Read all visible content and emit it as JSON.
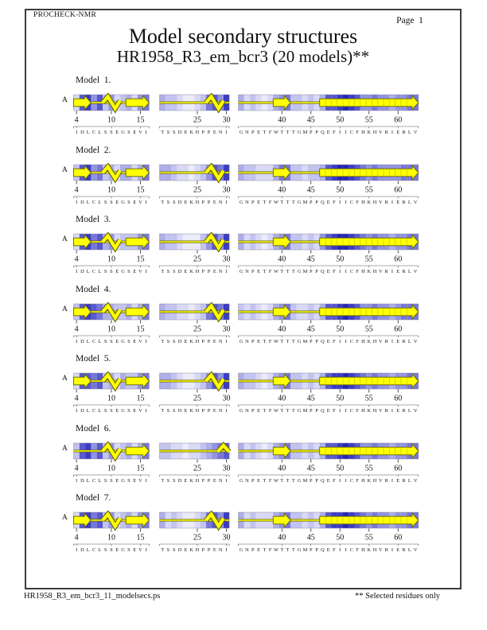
{
  "header": {
    "app_name": "PROCHECK-NMR",
    "page_label": "Page  1",
    "title": "Model secondary structures",
    "subtitle": "HR1958_R3_em_bcr3 (20 models)**"
  },
  "footer": {
    "left": "HR1958_R3_em_bcr3_11_modelsecs.ps",
    "right": "** Selected residues only"
  },
  "chain_label": "A",
  "colors": {
    "structure_fill": "#ffff00",
    "structure_outline": "#636300",
    "strand_divider": "#c8c800",
    "shade_scale": [
      "#ffffff",
      "#ebebfa",
      "#d9d9f6",
      "#c3c3ef",
      "#adade9",
      "#9393e1",
      "#7777d8",
      "#5858cf",
      "#3b3bc5",
      "#2424ba"
    ]
  },
  "segments": [
    {
      "start": 4,
      "end": 16,
      "ticks": [
        4,
        10,
        15
      ],
      "sequence": "IDLCLSSEGSEVI"
    },
    {
      "start": 19,
      "end": 30,
      "ticks": [
        25,
        30
      ],
      "sequence": "TSSDEKHPPENI"
    },
    {
      "start": 33,
      "end": 63,
      "ticks": [
        40,
        45,
        50,
        55,
        60
      ],
      "sequence": "GNPETFWTTTGMPPQEFIICFHKHVRIERLV"
    }
  ],
  "models": [
    {
      "label": "Model  1.",
      "segments": [
        {
          "shades": [
            2,
            7,
            8,
            5,
            7,
            3,
            5,
            2,
            3,
            4,
            2,
            5,
            6
          ],
          "structures": [
            {
              "type": "strand",
              "from": 4,
              "to": 6
            },
            {
              "type": "helix",
              "from": 9,
              "to": 11
            },
            {
              "type": "strand",
              "from": 13,
              "to": 16
            }
          ]
        },
        {
          "shades": [
            4,
            3,
            3,
            2,
            1,
            1,
            2,
            3,
            6,
            7,
            5,
            8
          ],
          "structures": [
            {
              "type": "helix",
              "from": 27,
              "to": 29
            }
          ]
        },
        {
          "shades": [
            4,
            2,
            3,
            2,
            1,
            2,
            4,
            5,
            6,
            3,
            3,
            2,
            3,
            2,
            4,
            7,
            7,
            8,
            9,
            8,
            7,
            5,
            5,
            6,
            5,
            5,
            4,
            5,
            5,
            6,
            6
          ],
          "structures": [
            {
              "type": "strand",
              "from": 39,
              "to": 41
            },
            {
              "type": "strand",
              "from": 47,
              "to": 63
            }
          ]
        }
      ]
    },
    {
      "label": "Model  2.",
      "segments": [
        {
          "shades": [
            3,
            7,
            8,
            5,
            6,
            3,
            4,
            2,
            4,
            4,
            2,
            4,
            6
          ],
          "structures": [
            {
              "type": "strand",
              "from": 4,
              "to": 6
            },
            {
              "type": "helix",
              "from": 9,
              "to": 11
            },
            {
              "type": "strand",
              "from": 13,
              "to": 16
            }
          ]
        },
        {
          "shades": [
            4,
            4,
            3,
            2,
            2,
            1,
            2,
            3,
            5,
            7,
            6,
            8
          ],
          "structures": [
            {
              "type": "helix",
              "from": 27,
              "to": 29
            }
          ]
        },
        {
          "shades": [
            4,
            3,
            3,
            2,
            2,
            2,
            4,
            6,
            6,
            3,
            3,
            2,
            3,
            3,
            4,
            7,
            8,
            9,
            9,
            8,
            7,
            6,
            5,
            6,
            5,
            5,
            5,
            5,
            6,
            6,
            6
          ],
          "structures": [
            {
              "type": "strand",
              "from": 39,
              "to": 41
            },
            {
              "type": "strand",
              "from": 47,
              "to": 63
            }
          ]
        }
      ]
    },
    {
      "label": "Model  3.",
      "segments": [
        {
          "shades": [
            2,
            7,
            8,
            6,
            7,
            4,
            5,
            2,
            3,
            3,
            3,
            5,
            6
          ],
          "structures": [
            {
              "type": "strand",
              "from": 4,
              "to": 6
            },
            {
              "type": "helix",
              "from": 9,
              "to": 11
            },
            {
              "type": "strand",
              "from": 13,
              "to": 16
            }
          ]
        },
        {
          "shades": [
            4,
            3,
            3,
            2,
            1,
            1,
            1,
            3,
            5,
            7,
            5,
            8
          ],
          "structures": [
            {
              "type": "helix",
              "from": 27,
              "to": 29
            }
          ]
        },
        {
          "shades": [
            4,
            2,
            3,
            2,
            1,
            2,
            4,
            5,
            6,
            3,
            3,
            2,
            3,
            2,
            5,
            7,
            8,
            9,
            9,
            8,
            7,
            6,
            5,
            6,
            5,
            5,
            4,
            5,
            5,
            6,
            6
          ],
          "structures": [
            {
              "type": "strand",
              "from": 39,
              "to": 41
            },
            {
              "type": "strand",
              "from": 47,
              "to": 63
            }
          ]
        }
      ]
    },
    {
      "label": "Model  4.",
      "segments": [
        {
          "shades": [
            3,
            7,
            8,
            7,
            6,
            4,
            4,
            3,
            3,
            4,
            2,
            4,
            6
          ],
          "structures": [
            {
              "type": "strand",
              "from": 4,
              "to": 6
            },
            {
              "type": "helix",
              "from": 9,
              "to": 11
            },
            {
              "type": "strand",
              "from": 13,
              "to": 16
            }
          ]
        },
        {
          "shades": [
            4,
            3,
            3,
            2,
            2,
            1,
            2,
            3,
            6,
            7,
            6,
            8
          ],
          "structures": [
            {
              "type": "helix",
              "from": 27,
              "to": 29
            }
          ]
        },
        {
          "shades": [
            3,
            2,
            3,
            2,
            1,
            2,
            4,
            5,
            6,
            3,
            2,
            2,
            3,
            2,
            4,
            7,
            7,
            8,
            9,
            8,
            7,
            5,
            5,
            6,
            5,
            5,
            4,
            5,
            6,
            6,
            6
          ],
          "structures": [
            {
              "type": "strand",
              "from": 39,
              "to": 41
            },
            {
              "type": "strand",
              "from": 47,
              "to": 63
            }
          ]
        }
      ]
    },
    {
      "label": "Model  5.",
      "segments": [
        {
          "shades": [
            2,
            7,
            7,
            6,
            7,
            3,
            4,
            2,
            4,
            3,
            3,
            5,
            6
          ],
          "structures": [
            {
              "type": "strand",
              "from": 4,
              "to": 6
            },
            {
              "type": "helix",
              "from": 9,
              "to": 11
            },
            {
              "type": "strand",
              "from": 13,
              "to": 16
            }
          ]
        },
        {
          "shades": [
            4,
            4,
            3,
            2,
            1,
            1,
            2,
            3,
            5,
            7,
            5,
            8
          ],
          "structures": [
            {
              "type": "helix",
              "from": 27,
              "to": 29
            }
          ]
        },
        {
          "shades": [
            4,
            3,
            3,
            2,
            1,
            2,
            4,
            5,
            6,
            3,
            3,
            2,
            3,
            2,
            4,
            7,
            8,
            8,
            9,
            8,
            7,
            6,
            5,
            6,
            5,
            5,
            4,
            5,
            5,
            6,
            6
          ],
          "structures": [
            {
              "type": "strand",
              "from": 39,
              "to": 41
            },
            {
              "type": "strand",
              "from": 47,
              "to": 63
            }
          ]
        }
      ]
    },
    {
      "label": "Model  6.",
      "segments": [
        {
          "shades": [
            3,
            7,
            8,
            5,
            7,
            3,
            5,
            2,
            3,
            4,
            2,
            4,
            6
          ],
          "structures": [
            {
              "type": "helix",
              "from": 9,
              "to": 11
            },
            {
              "type": "strand",
              "from": 13,
              "to": 16
            }
          ]
        },
        {
          "shades": [
            3,
            3,
            2,
            2,
            1,
            2,
            2,
            3,
            4,
            5,
            6,
            7
          ],
          "structures": [
            {
              "type": "helix",
              "from": 29,
              "to": 30
            }
          ]
        },
        {
          "shades": [
            4,
            2,
            3,
            2,
            1,
            2,
            4,
            5,
            6,
            3,
            3,
            2,
            3,
            2,
            4,
            7,
            7,
            8,
            9,
            8,
            7,
            5,
            5,
            6,
            5,
            5,
            4,
            5,
            5,
            6,
            6
          ],
          "structures": [
            {
              "type": "strand",
              "from": 39,
              "to": 41
            },
            {
              "type": "strand",
              "from": 47,
              "to": 63
            }
          ]
        }
      ]
    },
    {
      "label": "Model  7.",
      "segments": [
        {
          "shades": [
            2,
            7,
            8,
            6,
            7,
            3,
            5,
            2,
            3,
            4,
            2,
            5,
            6
          ],
          "structures": [
            {
              "type": "strand",
              "from": 4,
              "to": 6
            },
            {
              "type": "helix",
              "from": 9,
              "to": 11
            },
            {
              "type": "strand",
              "from": 13,
              "to": 16
            }
          ]
        },
        {
          "shades": [
            4,
            2,
            3,
            2,
            1,
            1,
            2,
            3,
            6,
            7,
            5,
            8
          ],
          "structures": [
            {
              "type": "helix",
              "from": 27,
              "to": 29
            }
          ]
        },
        {
          "shades": [
            4,
            2,
            3,
            2,
            2,
            2,
            4,
            5,
            6,
            3,
            3,
            2,
            3,
            2,
            4,
            7,
            8,
            8,
            9,
            8,
            7,
            6,
            5,
            6,
            5,
            5,
            4,
            5,
            5,
            6,
            6
          ],
          "structures": [
            {
              "type": "strand",
              "from": 39,
              "to": 41
            },
            {
              "type": "strand",
              "from": 47,
              "to": 63
            }
          ]
        }
      ]
    }
  ]
}
